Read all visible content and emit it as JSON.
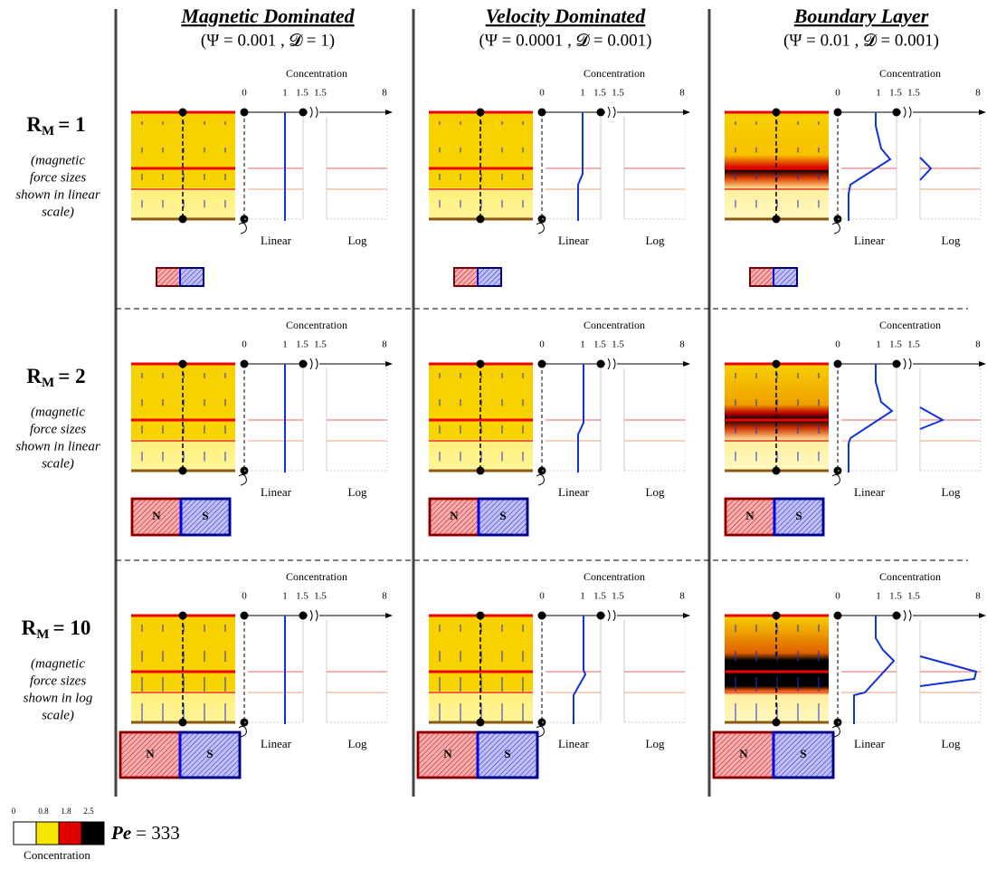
{
  "columns": [
    {
      "title": "Magnetic Dominated",
      "params": "(Ψ = 0.001 , 𝓓 = 1)"
    },
    {
      "title": "Velocity Dominated",
      "params": "(Ψ = 0.0001 , 𝓓 = 0.001)"
    },
    {
      "title": "Boundary Layer",
      "params": "(Ψ = 0.01 , 𝓓 = 0.001)"
    }
  ],
  "rows": [
    {
      "label": "R",
      "sub": "M",
      "value": "= 1",
      "note": [
        "(magnetic",
        "force sizes",
        "shown in linear",
        "scale)"
      ]
    },
    {
      "label": "R",
      "sub": "M",
      "value": "= 2",
      "note": [
        "(magnetic",
        "force sizes",
        "shown in linear",
        "scale)"
      ]
    },
    {
      "label": "R",
      "sub": "M",
      "value": "= 10",
      "note": [
        "(magnetic",
        "force sizes",
        "shown in log",
        "scale)"
      ]
    }
  ],
  "panel": {
    "axis_title": "Concentration",
    "ticks": [
      "0",
      "1",
      "1.5",
      "1.5",
      "8"
    ],
    "linear_label": "Linear",
    "log_label": "Log",
    "magnet_n": "N",
    "magnet_s": "S"
  },
  "legend": {
    "ticks": [
      "0",
      "0.8",
      "1.8",
      "2.5"
    ],
    "title": "Concentration",
    "pe_symbol": "Pe",
    "pe_value": "= 333"
  }
}
